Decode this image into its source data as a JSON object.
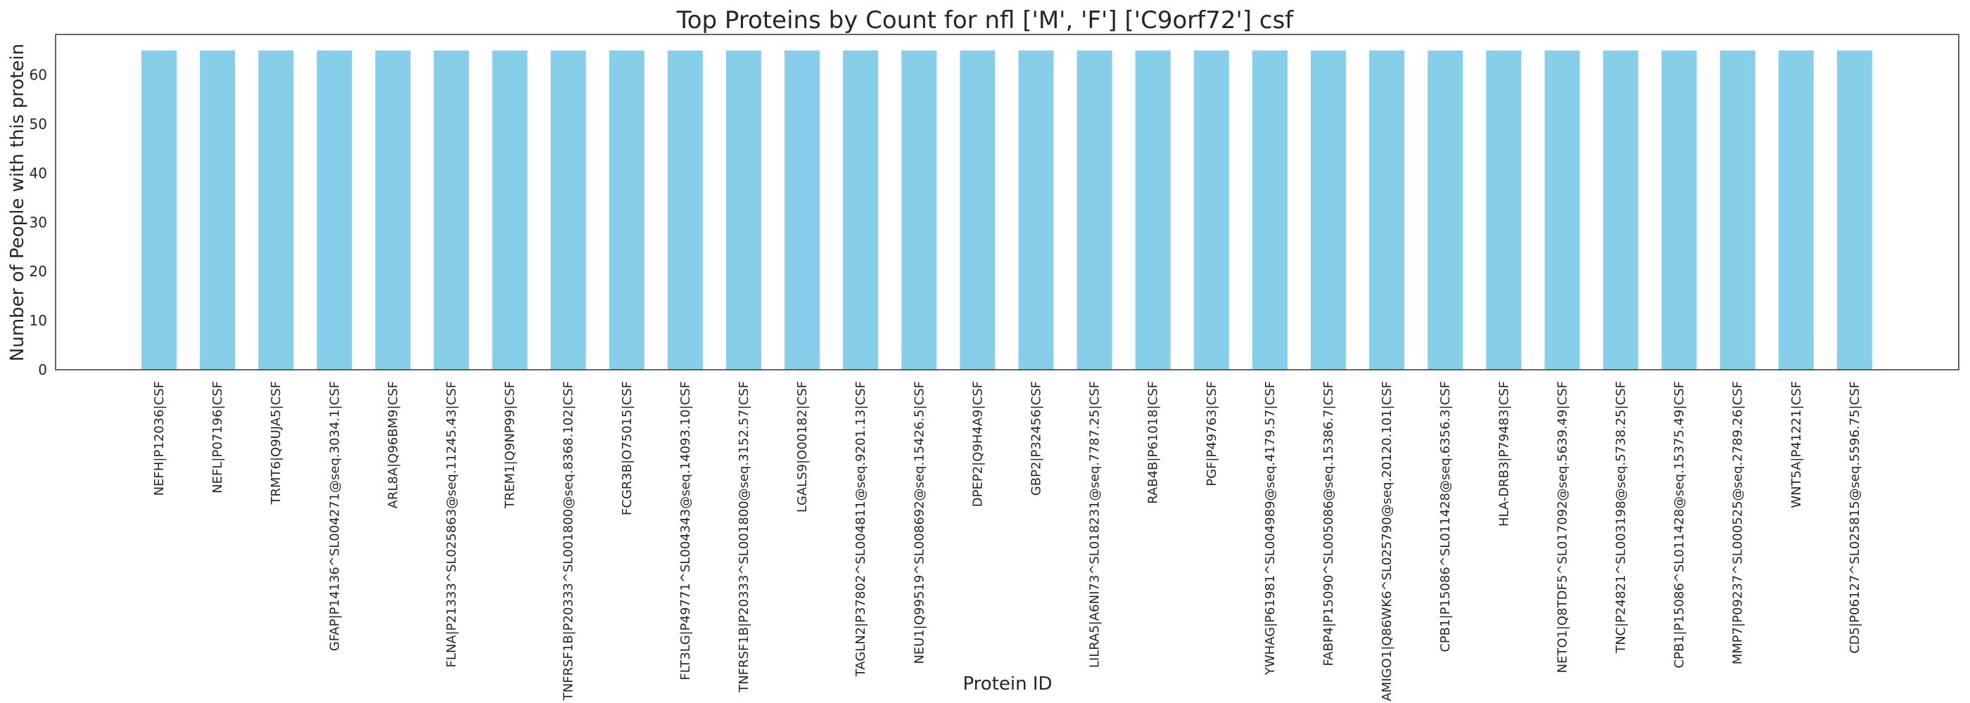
{
  "chart_data": {
    "type": "bar",
    "title": "Top Proteins by Count for nfl ['M', 'F'] ['C9orf72'] csf",
    "xlabel": "Protein ID",
    "ylabel": "Number of People with this protein",
    "ylim": [
      0,
      68.25
    ],
    "yticks": [
      0,
      10,
      20,
      30,
      40,
      50,
      60
    ],
    "grid": false,
    "color": "#87ceeb",
    "categories": [
      "NEFH|P12036|CSF",
      "NEFL|P07196|CSF",
      "TRMT6|Q9UJA5|CSF",
      "GFAP|P14136^SL004271@seq.3034.1|CSF",
      "ARL8A|Q96BM9|CSF",
      "FLNA|P21333^SL025863@seq.11245.43|CSF",
      "TREM1|Q9NP99|CSF",
      "TNFRSF1B|P20333^SL001800@seq.8368.102|CSF",
      "FCGR3B|O75015|CSF",
      "FLT3LG|P49771^SL004343@seq.14093.10|CSF",
      "TNFRSF1B|P20333^SL001800@seq.3152.57|CSF",
      "LGALS9|O00182|CSF",
      "TAGLN2|P37802^SL004811@seq.9201.13|CSF",
      "NEU1|Q99519^SL008692@seq.15426.5|CSF",
      "DPEP2|Q9H4A9|CSF",
      "GBP2|P32456|CSF",
      "LILRA5|A6NI73^SL018231@seq.7787.25|CSF",
      "RAB4B|P61018|CSF",
      "PGF|P49763|CSF",
      "YWHAG|P61981^SL004989@seq.4179.57|CSF",
      "FABP4|P15090^SL005086@seq.15386.7|CSF",
      "AMIGO1|Q86WK6^SL025790@seq.20120.101|CSF",
      "CPB1|P15086^SL011428@seq.6356.3|CSF",
      "HLA-DRB3|P79483|CSF",
      "NETO1|Q8TDF5^SL017092@seq.5639.49|CSF",
      "TNC|P24821^SL003198@seq.5738.25|CSF",
      "CPB1|P15086^SL011428@seq.15375.49|CSF",
      "MMP7|P09237^SL000525@seq.2789.26|CSF",
      "WNT5A|P41221|CSF",
      "CD5|P06127^SL025815@seq.5596.75|CSF"
    ],
    "values": [
      65,
      65,
      65,
      65,
      65,
      65,
      65,
      65,
      65,
      65,
      65,
      65,
      65,
      65,
      65,
      65,
      65,
      65,
      65,
      65,
      65,
      65,
      65,
      65,
      65,
      65,
      65,
      65,
      65,
      65
    ]
  }
}
